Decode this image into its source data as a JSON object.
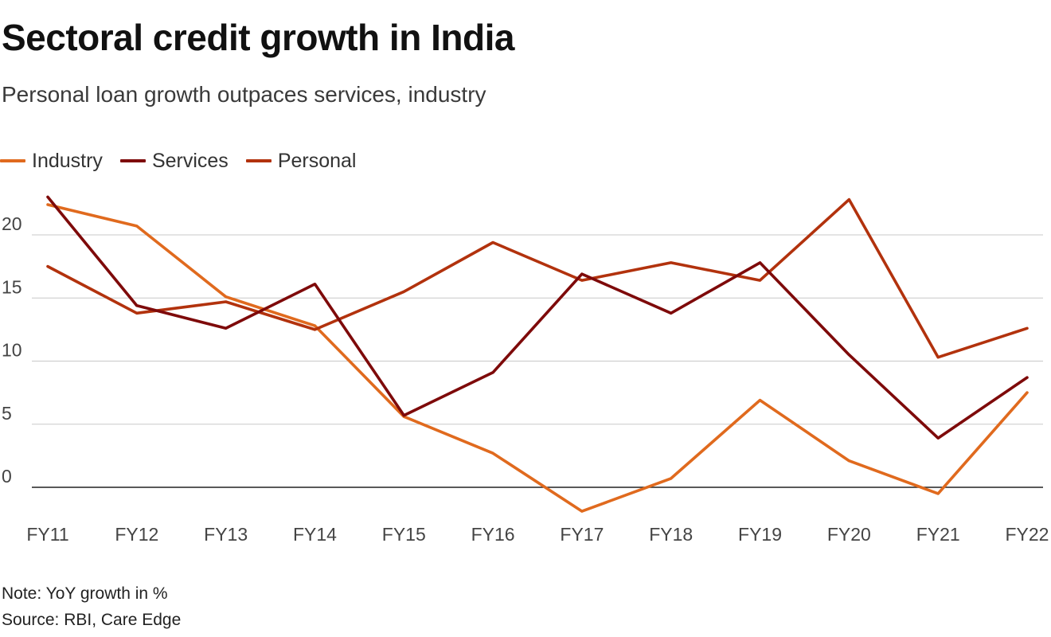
{
  "header": {
    "title": "Sectoral credit growth in India",
    "subtitle": "Personal loan growth outpaces services, industry"
  },
  "footer": {
    "note": "Note: YoY growth in %",
    "source": "Source: RBI, Care Edge"
  },
  "colors": {
    "industry": "#E06A1E",
    "services": "#7E0A0A",
    "personal": "#B2320D",
    "grid": "#c8c8c8",
    "zero_line": "#222222"
  },
  "chart_data": {
    "type": "line",
    "title": "Sectoral credit growth in India",
    "subtitle": "Personal loan growth outpaces services, industry",
    "xlabel": "",
    "ylabel": "YoY growth in %",
    "categories": [
      "FY11",
      "FY12",
      "FY13",
      "FY14",
      "FY15",
      "FY16",
      "FY17",
      "FY18",
      "FY19",
      "FY20",
      "FY21",
      "FY22"
    ],
    "series": [
      {
        "name": "Industry",
        "color": "#E06A1E",
        "values": [
          22.4,
          20.7,
          15.1,
          12.8,
          5.6,
          2.7,
          -1.9,
          0.7,
          6.9,
          2.1,
          -0.5,
          7.5
        ]
      },
      {
        "name": "Services",
        "color": "#7E0A0A",
        "values": [
          23.0,
          14.4,
          12.6,
          16.1,
          5.7,
          9.1,
          16.9,
          13.8,
          17.8,
          10.5,
          3.9,
          8.7
        ]
      },
      {
        "name": "Personal",
        "color": "#B2320D",
        "values": [
          17.5,
          13.8,
          14.7,
          12.5,
          15.5,
          19.4,
          16.4,
          17.8,
          16.4,
          22.8,
          10.3,
          12.6
        ]
      }
    ],
    "yticks": [
      "0",
      "5",
      "10",
      "15",
      "20"
    ],
    "ytick_values": [
      0,
      5,
      10,
      15,
      20
    ],
    "ylim": [
      -2.5,
      24
    ],
    "grid": true,
    "legend_position": "top-left"
  }
}
